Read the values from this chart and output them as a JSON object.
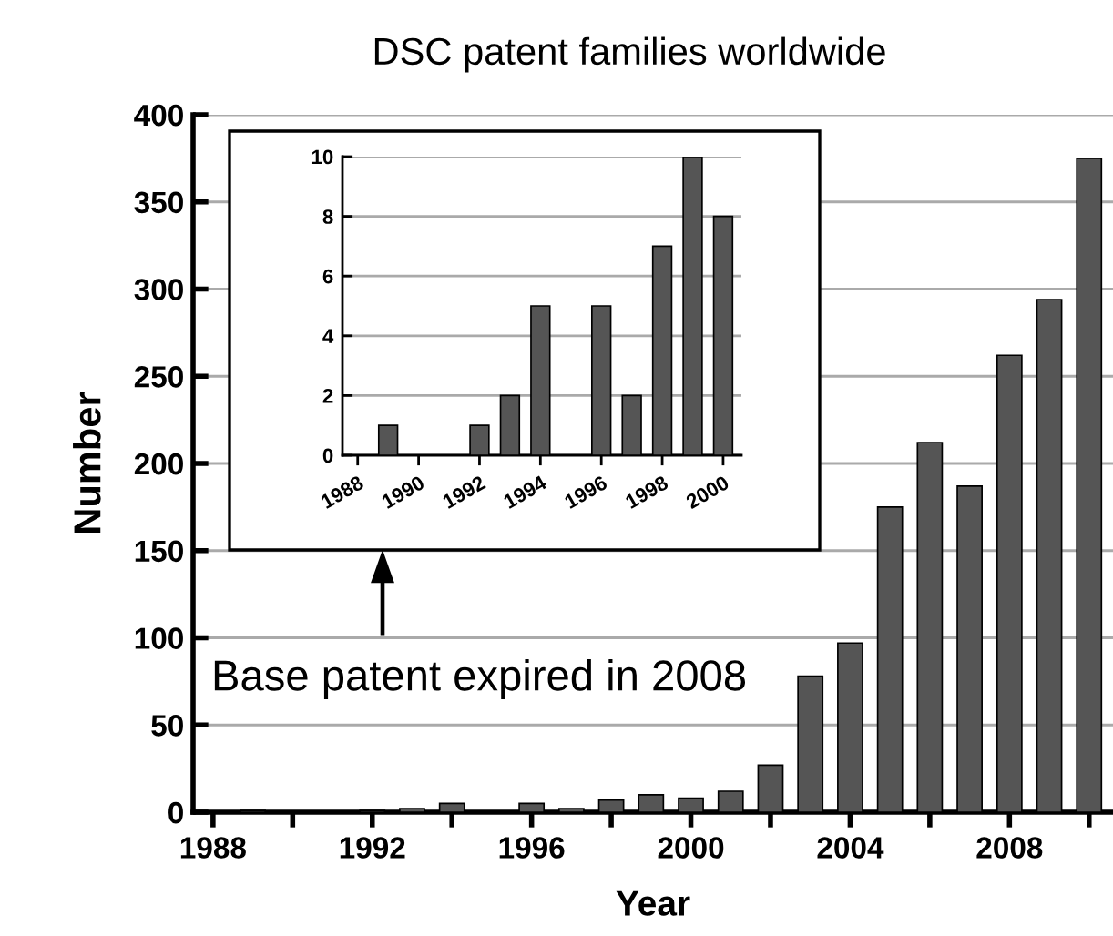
{
  "chart_data": [
    {
      "type": "bar",
      "title": "DSC patent families worldwide",
      "xlabel": "Year",
      "ylabel": "Number",
      "x": [
        1989,
        1992,
        1993,
        1994,
        1996,
        1997,
        1998,
        1999,
        2000,
        2001,
        2002,
        2003,
        2004,
        2005,
        2006,
        2007,
        2008,
        2009,
        2010
      ],
      "values": [
        1,
        1,
        2,
        5,
        5,
        2,
        7,
        10,
        8,
        12,
        27,
        78,
        97,
        175,
        212,
        187,
        262,
        294,
        375
      ],
      "color": "#555555",
      "xlim": [
        1987.5,
        2010.6
      ],
      "ylim": [
        0,
        400
      ],
      "xticks": [
        1988,
        {
          "value": 1990,
          "label": null
        },
        1992,
        {
          "value": 1994,
          "label": null
        },
        1996,
        {
          "value": 1998,
          "label": null
        },
        2000,
        {
          "value": 2002,
          "label": null
        },
        2004,
        {
          "value": 2006,
          "label": null
        },
        2008,
        {
          "value": 2010,
          "label": null
        }
      ],
      "yticks": [
        0,
        50,
        100,
        150,
        200,
        250,
        300,
        350,
        400
      ],
      "grid": "y",
      "annotations": [
        "Base patent expired in 2008"
      ]
    },
    {
      "type": "bar",
      "x": [
        1989,
        1992,
        1993,
        1994,
        1996,
        1997,
        1998,
        1999,
        2000
      ],
      "values": [
        1,
        1,
        2,
        5,
        5,
        2,
        7,
        10,
        8
      ],
      "color": "#555555",
      "xlim": [
        1987.5,
        2000.6
      ],
      "ylim": [
        0,
        10
      ],
      "xticks": [
        1988,
        1990,
        1992,
        1994,
        1996,
        1998,
        2000
      ],
      "yticks": [
        0,
        2,
        4,
        6,
        8,
        10
      ],
      "grid": "y"
    }
  ]
}
